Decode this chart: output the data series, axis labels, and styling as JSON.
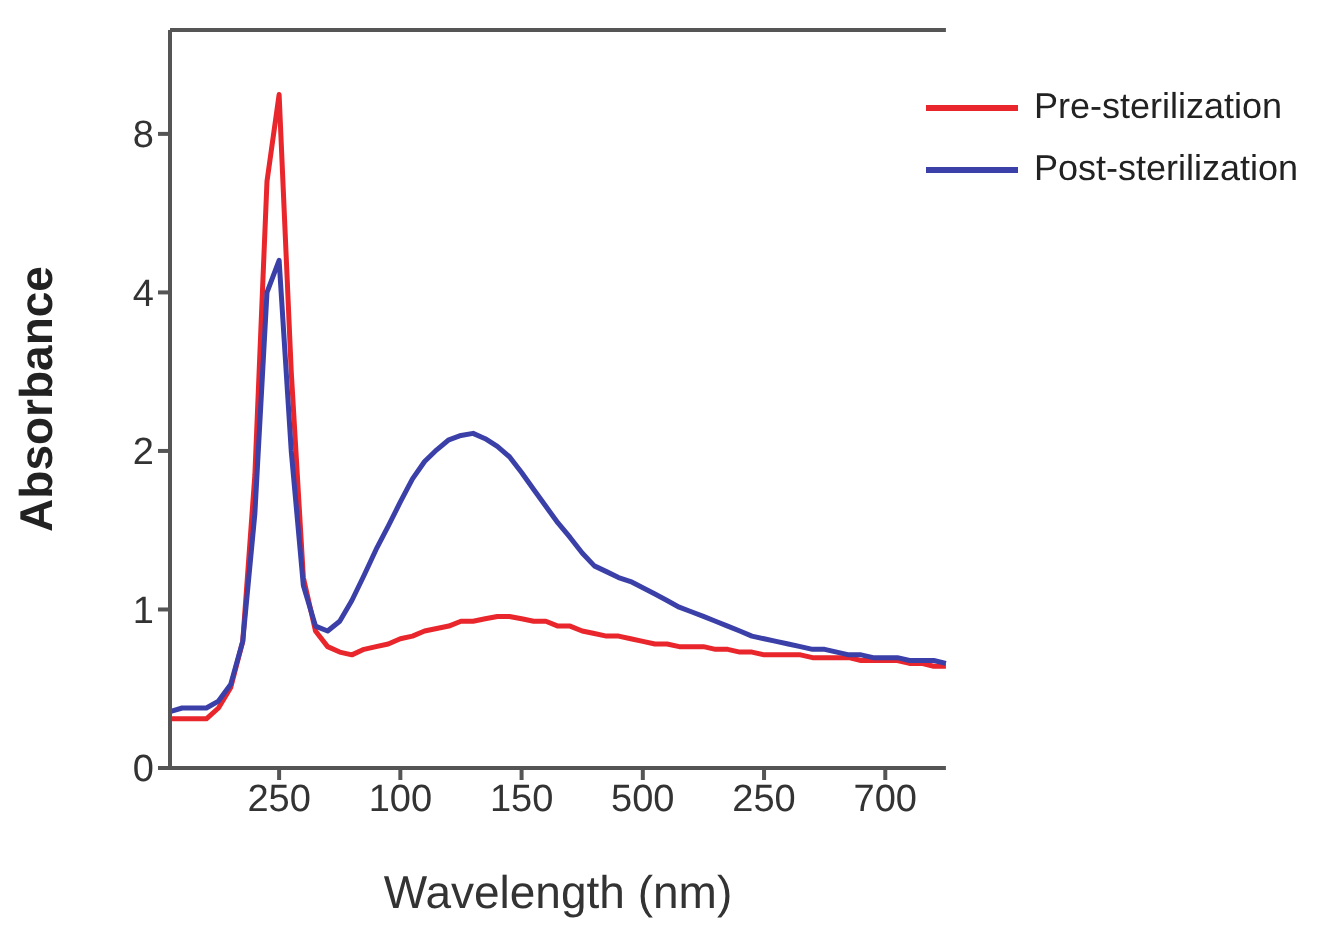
{
  "chart_data": {
    "type": "line",
    "xlabel": "Wavelength (nm)",
    "ylabel": "Absorbance",
    "categories": [
      null,
      null,
      null,
      null,
      null,
      null,
      null,
      null,
      null,
      "250",
      null,
      null,
      null,
      null,
      null,
      null,
      null,
      null,
      null,
      "100",
      null,
      null,
      null,
      null,
      null,
      null,
      null,
      null,
      null,
      "150",
      null,
      null,
      null,
      null,
      null,
      null,
      null,
      null,
      null,
      "500",
      null,
      null,
      null,
      null,
      null,
      null,
      null,
      null,
      null,
      "250",
      null,
      null,
      null,
      null,
      null,
      null,
      null,
      null,
      null,
      "700",
      null,
      null,
      null,
      null,
      null
    ],
    "log": "y",
    "ylim": [
      0.5,
      12.6
    ],
    "yticks": [
      {
        "value": 0.5,
        "label": "0"
      },
      1,
      2,
      4,
      8
    ],
    "grid": false,
    "legend": "top right",
    "marker": "none",
    "line_style": "solid",
    "series": [
      {
        "name": "Pre-sterilization",
        "color": "#e8262c",
        "values": [
          0.62,
          0.62,
          0.62,
          0.62,
          0.65,
          0.71,
          0.87,
          1.8,
          6.5,
          9.5,
          2.83,
          1.15,
          0.91,
          0.85,
          0.83,
          0.82,
          0.84,
          0.85,
          0.86,
          0.88,
          0.89,
          0.91,
          0.92,
          0.93,
          0.95,
          0.95,
          0.96,
          0.97,
          0.97,
          0.96,
          0.95,
          0.95,
          0.93,
          0.93,
          0.91,
          0.9,
          0.89,
          0.89,
          0.88,
          0.87,
          0.86,
          0.86,
          0.85,
          0.85,
          0.85,
          0.84,
          0.84,
          0.83,
          0.83,
          0.82,
          0.82,
          0.82,
          0.82,
          0.81,
          0.81,
          0.81,
          0.81,
          0.8,
          0.8,
          0.8,
          0.8,
          0.79,
          0.79,
          0.78,
          0.78
        ]
      },
      {
        "name": "Post-sterilization",
        "color": "#3b3fa8",
        "values": [
          0.64,
          0.65,
          0.65,
          0.65,
          0.67,
          0.72,
          0.87,
          1.52,
          4.0,
          4.6,
          2.0,
          1.11,
          0.93,
          0.91,
          0.95,
          1.04,
          1.16,
          1.3,
          1.44,
          1.6,
          1.77,
          1.91,
          2.01,
          2.1,
          2.14,
          2.16,
          2.11,
          2.04,
          1.95,
          1.82,
          1.69,
          1.57,
          1.46,
          1.37,
          1.28,
          1.21,
          1.18,
          1.15,
          1.13,
          1.1,
          1.07,
          1.04,
          1.01,
          0.99,
          0.97,
          0.95,
          0.93,
          0.91,
          0.89,
          0.88,
          0.87,
          0.86,
          0.85,
          0.84,
          0.84,
          0.83,
          0.82,
          0.82,
          0.81,
          0.81,
          0.81,
          0.8,
          0.8,
          0.8,
          0.79
        ]
      }
    ]
  }
}
